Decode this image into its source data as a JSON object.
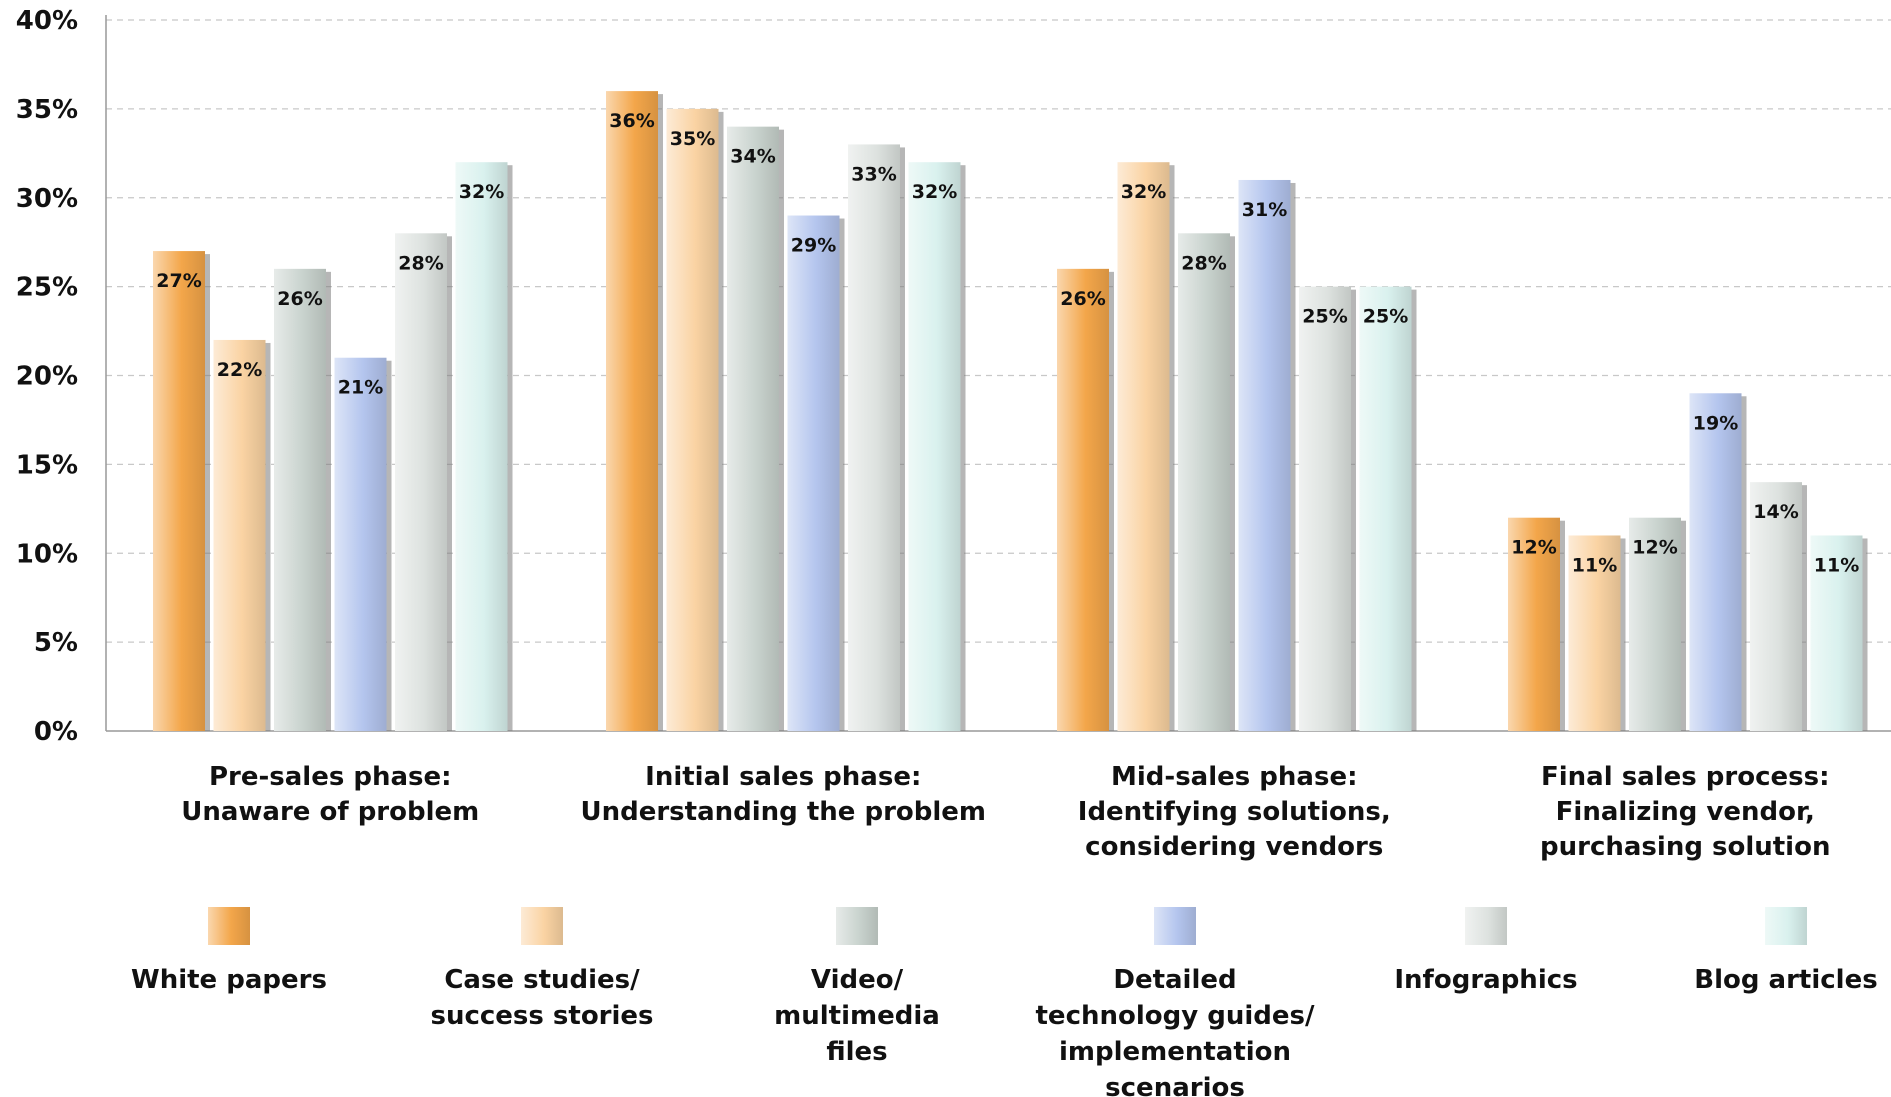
{
  "chart_data": {
    "type": "bar",
    "ylim": [
      0,
      40
    ],
    "y_ticks": [
      "0%",
      "5%",
      "10%",
      "15%",
      "20%",
      "25%",
      "30%",
      "35%",
      "40%"
    ],
    "y_tick_values": [
      0,
      5,
      10,
      15,
      20,
      25,
      30,
      35,
      40
    ],
    "grid": "horizontal dashed",
    "legend_position": "bottom",
    "categories": [
      [
        "Pre-sales phase:",
        "Unaware of problem"
      ],
      [
        "Initial sales phase:",
        "Understanding the problem"
      ],
      [
        "Mid-sales phase:",
        "Identifying solutions,",
        "considering vendors"
      ],
      [
        "Final sales process:",
        "Finalizing vendor,",
        "purchasing solution"
      ]
    ],
    "series": [
      {
        "name": [
          "White papers"
        ],
        "color": "#f3a64a",
        "values": [
          27,
          36,
          26,
          12
        ],
        "labels": [
          "27%",
          "36%",
          "26%",
          "12%"
        ]
      },
      {
        "name": [
          "Case studies/",
          "success stories"
        ],
        "color": "#fad3a3",
        "values": [
          22,
          35,
          32,
          11
        ],
        "labels": [
          "22%",
          "35%",
          "32%",
          "11%"
        ]
      },
      {
        "name": [
          "Video/",
          "multimedia",
          "files"
        ],
        "color": "#c9d3ce",
        "values": [
          26,
          34,
          28,
          12
        ],
        "labels": [
          "26%",
          "34%",
          "28%",
          "12%"
        ]
      },
      {
        "name": [
          "Detailed",
          "technology guides/",
          "implementation",
          "scenarios"
        ],
        "color": "#b4c5ee",
        "values": [
          21,
          29,
          31,
          19
        ],
        "labels": [
          "21%",
          "29%",
          "31%",
          "19%"
        ]
      },
      {
        "name": [
          "Infographics"
        ],
        "color": "#dde2df",
        "values": [
          28,
          33,
          25,
          14
        ],
        "labels": [
          "28%",
          "33%",
          "25%",
          "14%"
        ]
      },
      {
        "name": [
          "Blog articles"
        ],
        "color": "#d9f1ee",
        "values": [
          32,
          32,
          25,
          11
        ],
        "labels": [
          "32%",
          "32%",
          "25%",
          "11%"
        ]
      }
    ]
  }
}
